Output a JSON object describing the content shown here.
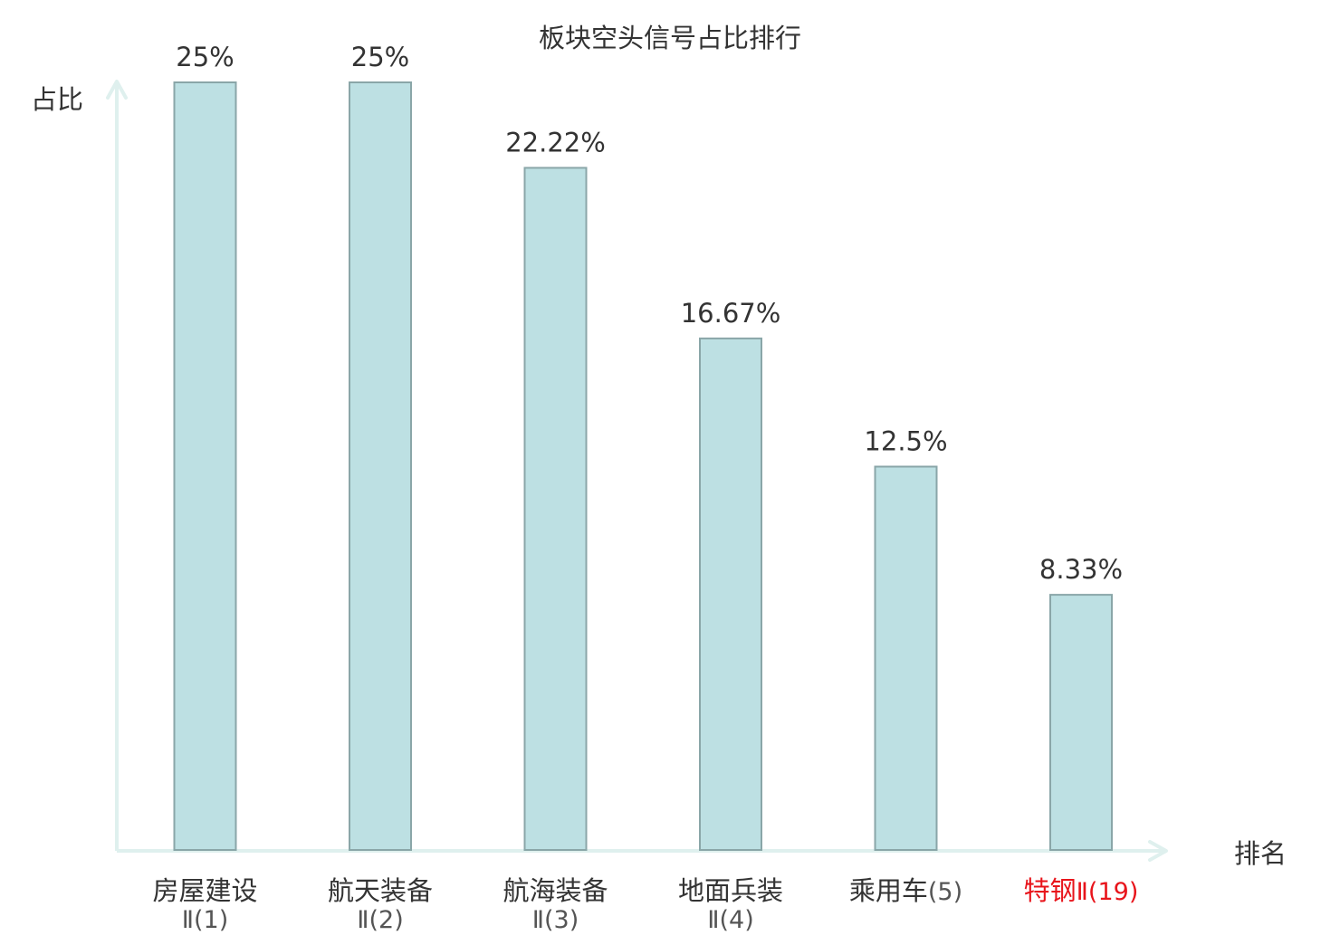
{
  "chart_data": {
    "type": "bar",
    "title": "板块空头信号占比排行",
    "ylabel": "占比",
    "xlabel": "排名",
    "categories": [
      {
        "name": "房屋建设",
        "suffix": "Ⅱ(1)",
        "two_line": true,
        "highlight": false
      },
      {
        "name": "航天装备",
        "suffix": "Ⅱ(2)",
        "two_line": true,
        "highlight": false
      },
      {
        "name": "航海装备",
        "suffix": "Ⅱ(3)",
        "two_line": true,
        "highlight": false
      },
      {
        "name": "地面兵装",
        "suffix": "Ⅱ(4)",
        "two_line": true,
        "highlight": false
      },
      {
        "name": "乘用车",
        "suffix": "(5)",
        "two_line": false,
        "highlight": false
      },
      {
        "name": "特钢",
        "suffix": "Ⅱ(19)",
        "two_line": false,
        "highlight": true
      }
    ],
    "values": [
      25,
      25,
      22.22,
      16.67,
      12.5,
      8.33
    ],
    "value_labels": [
      "25%",
      "25%",
      "22.22%",
      "16.67%",
      "12.5%",
      "8.33%"
    ],
    "ylim": [
      0,
      25
    ],
    "grid": false,
    "colors": {
      "bar_fill": "#bde0e3",
      "bar_stroke": "#8aa6a8",
      "axis": "#dff0ee",
      "text": "#333333",
      "suffix_text": "#555555",
      "highlight": "#e8141b"
    }
  }
}
